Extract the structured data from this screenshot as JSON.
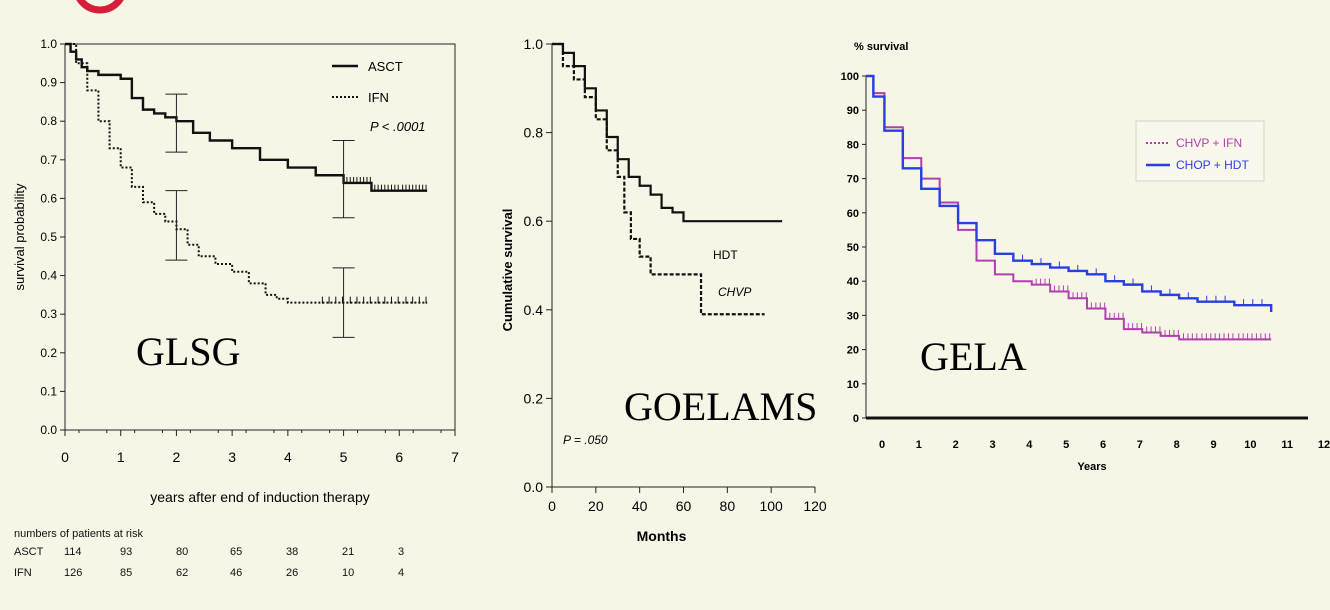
{
  "chart_data": [
    {
      "type": "line",
      "study_label": "GLSG",
      "title": "",
      "xlabel": "years after end of induction therapy",
      "ylabel": "survival probability",
      "xlim": [
        0,
        7
      ],
      "ylim": [
        0,
        1.0
      ],
      "x_ticks": [
        "0",
        "1",
        "2",
        "3",
        "4",
        "5",
        "6",
        "7"
      ],
      "y_ticks": [
        "0.0",
        "0.1",
        "0.2",
        "0.3",
        "0.4",
        "0.5",
        "0.6",
        "0.7",
        "0.8",
        "0.9",
        "1.0"
      ],
      "legend": {
        "placement": "top-right",
        "entries": [
          "ASCT",
          "IFN"
        ]
      },
      "annotation": "P < .0001",
      "series": [
        {
          "name": "ASCT",
          "style": "solid",
          "x": [
            0,
            0.1,
            0.2,
            0.3,
            0.4,
            0.6,
            0.8,
            1.0,
            1.2,
            1.4,
            1.6,
            1.8,
            2.0,
            2.3,
            2.6,
            3.0,
            3.5,
            4.0,
            4.5,
            5.0,
            5.5,
            6.0,
            6.5
          ],
          "y": [
            1.0,
            0.98,
            0.96,
            0.94,
            0.93,
            0.92,
            0.92,
            0.91,
            0.86,
            0.83,
            0.82,
            0.81,
            0.8,
            0.77,
            0.75,
            0.73,
            0.7,
            0.68,
            0.66,
            0.64,
            0.62,
            0.62,
            0.62
          ]
        },
        {
          "name": "IFN",
          "style": "dotted",
          "x": [
            0,
            0.2,
            0.4,
            0.6,
            0.8,
            1.0,
            1.2,
            1.4,
            1.6,
            1.8,
            2.0,
            2.2,
            2.4,
            2.7,
            3.0,
            3.3,
            3.6,
            3.8,
            4.0,
            4.5,
            5.0,
            5.5,
            6.0,
            6.5
          ],
          "y": [
            1.0,
            0.95,
            0.88,
            0.8,
            0.73,
            0.68,
            0.63,
            0.59,
            0.56,
            0.54,
            0.52,
            0.48,
            0.45,
            0.43,
            0.41,
            0.38,
            0.35,
            0.34,
            0.33,
            0.33,
            0.33,
            0.33,
            0.33,
            0.33
          ]
        }
      ],
      "error_bars": [
        {
          "x": 2,
          "low": 0.72,
          "high": 0.87
        },
        {
          "x": 2,
          "low": 0.44,
          "high": 0.62
        },
        {
          "x": 5,
          "low": 0.55,
          "high": 0.75
        },
        {
          "x": 5,
          "low": 0.24,
          "high": 0.42
        }
      ],
      "risk_table": {
        "title": "numbers of patients at risk",
        "rows": [
          {
            "label": "ASCT",
            "values": [
              "114",
              "93",
              "80",
              "65",
              "38",
              "21",
              "3"
            ]
          },
          {
            "label": "IFN",
            "values": [
              "126",
              "85",
              "62",
              "46",
              "26",
              "10",
              "4"
            ]
          }
        ]
      }
    },
    {
      "type": "line",
      "study_label": "GOELAMS",
      "title": "",
      "xlabel": "Months",
      "ylabel": "Cumulative survival",
      "xlim": [
        0,
        120
      ],
      "ylim": [
        0,
        1.0
      ],
      "x_ticks": [
        "0",
        "20",
        "40",
        "60",
        "80",
        "100",
        "120"
      ],
      "y_ticks": [
        "0.0",
        "0.2",
        "0.4",
        "0.6",
        "0.8",
        "1.0"
      ],
      "annotation": "P = .050",
      "series": [
        {
          "name": "HDT",
          "style": "solid",
          "x": [
            0,
            5,
            10,
            15,
            20,
            25,
            30,
            35,
            40,
            45,
            50,
            55,
            60,
            70,
            80,
            90,
            100,
            105
          ],
          "y": [
            1.0,
            0.98,
            0.95,
            0.9,
            0.85,
            0.79,
            0.74,
            0.7,
            0.68,
            0.66,
            0.63,
            0.62,
            0.6,
            0.6,
            0.6,
            0.6,
            0.6,
            0.6
          ]
        },
        {
          "name": "CHVP",
          "style": "dashed",
          "x": [
            0,
            5,
            10,
            15,
            20,
            25,
            30,
            33,
            36,
            40,
            45,
            50,
            55,
            60,
            65,
            68,
            70,
            80,
            90,
            97
          ],
          "y": [
            1.0,
            0.95,
            0.92,
            0.88,
            0.83,
            0.76,
            0.7,
            0.62,
            0.56,
            0.52,
            0.48,
            0.48,
            0.48,
            0.48,
            0.48,
            0.39,
            0.39,
            0.39,
            0.39,
            0.39
          ]
        }
      ]
    },
    {
      "type": "line",
      "study_label": "GELA",
      "title": "",
      "xlabel": "Years",
      "ylabel": "% survival",
      "xlim": [
        0,
        12
      ],
      "ylim": [
        0,
        100
      ],
      "x_ticks": [
        "0",
        "1",
        "2",
        "3",
        "4",
        "5",
        "6",
        "7",
        "8",
        "9",
        "10",
        "11",
        "12"
      ],
      "y_ticks": [
        "0",
        "10",
        "20",
        "30",
        "40",
        "50",
        "60",
        "70",
        "80",
        "90",
        "100"
      ],
      "legend": {
        "placement": "top-right",
        "entries": [
          "CHVP + IFN",
          "CHOP + HDT"
        ]
      },
      "colors": {
        "CHVP + IFN": "#b040b0",
        "CHOP + HDT": "#2a3fe0"
      },
      "series": [
        {
          "name": "CHVP + IFN",
          "style": "dotted",
          "x": [
            0,
            0.2,
            0.5,
            1,
            1.5,
            2,
            2.5,
            3,
            3.5,
            4,
            4.5,
            5,
            5.5,
            6,
            6.5,
            7,
            7.5,
            8,
            8.5,
            9,
            10,
            11
          ],
          "y": [
            100,
            95,
            85,
            76,
            70,
            63,
            55,
            46,
            42,
            40,
            39,
            37,
            35,
            32,
            29,
            26,
            25,
            24,
            23,
            23,
            23,
            23
          ]
        },
        {
          "name": "CHOP + HDT",
          "style": "solid",
          "x": [
            0,
            0.2,
            0.5,
            1,
            1.5,
            2,
            2.5,
            3,
            3.5,
            4,
            4.5,
            5,
            5.5,
            6,
            6.5,
            7,
            7.5,
            8,
            8.5,
            9,
            10,
            11
          ],
          "y": [
            100,
            94,
            84,
            73,
            67,
            62,
            57,
            52,
            48,
            46,
            45,
            44,
            43,
            42,
            40,
            39,
            37,
            36,
            35,
            34,
            33,
            31
          ]
        }
      ]
    }
  ]
}
